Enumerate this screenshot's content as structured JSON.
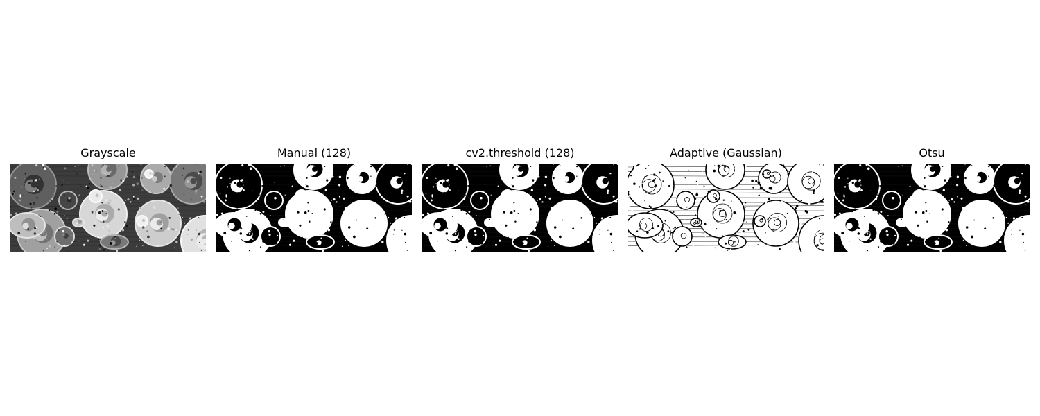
{
  "figure": {
    "panels": [
      {
        "title": "Grayscale",
        "style": "gray",
        "scene": "food-flatlay"
      },
      {
        "title": "Manual (128)",
        "style": "binary",
        "scene": "food-flatlay"
      },
      {
        "title": "cv2.threshold (128)",
        "style": "binary",
        "scene": "food-flatlay"
      },
      {
        "title": "Adaptive (Gaussian)",
        "style": "adaptive",
        "scene": "food-flatlay"
      },
      {
        "title": "Otsu",
        "style": "binary",
        "scene": "food-flatlay"
      }
    ]
  }
}
